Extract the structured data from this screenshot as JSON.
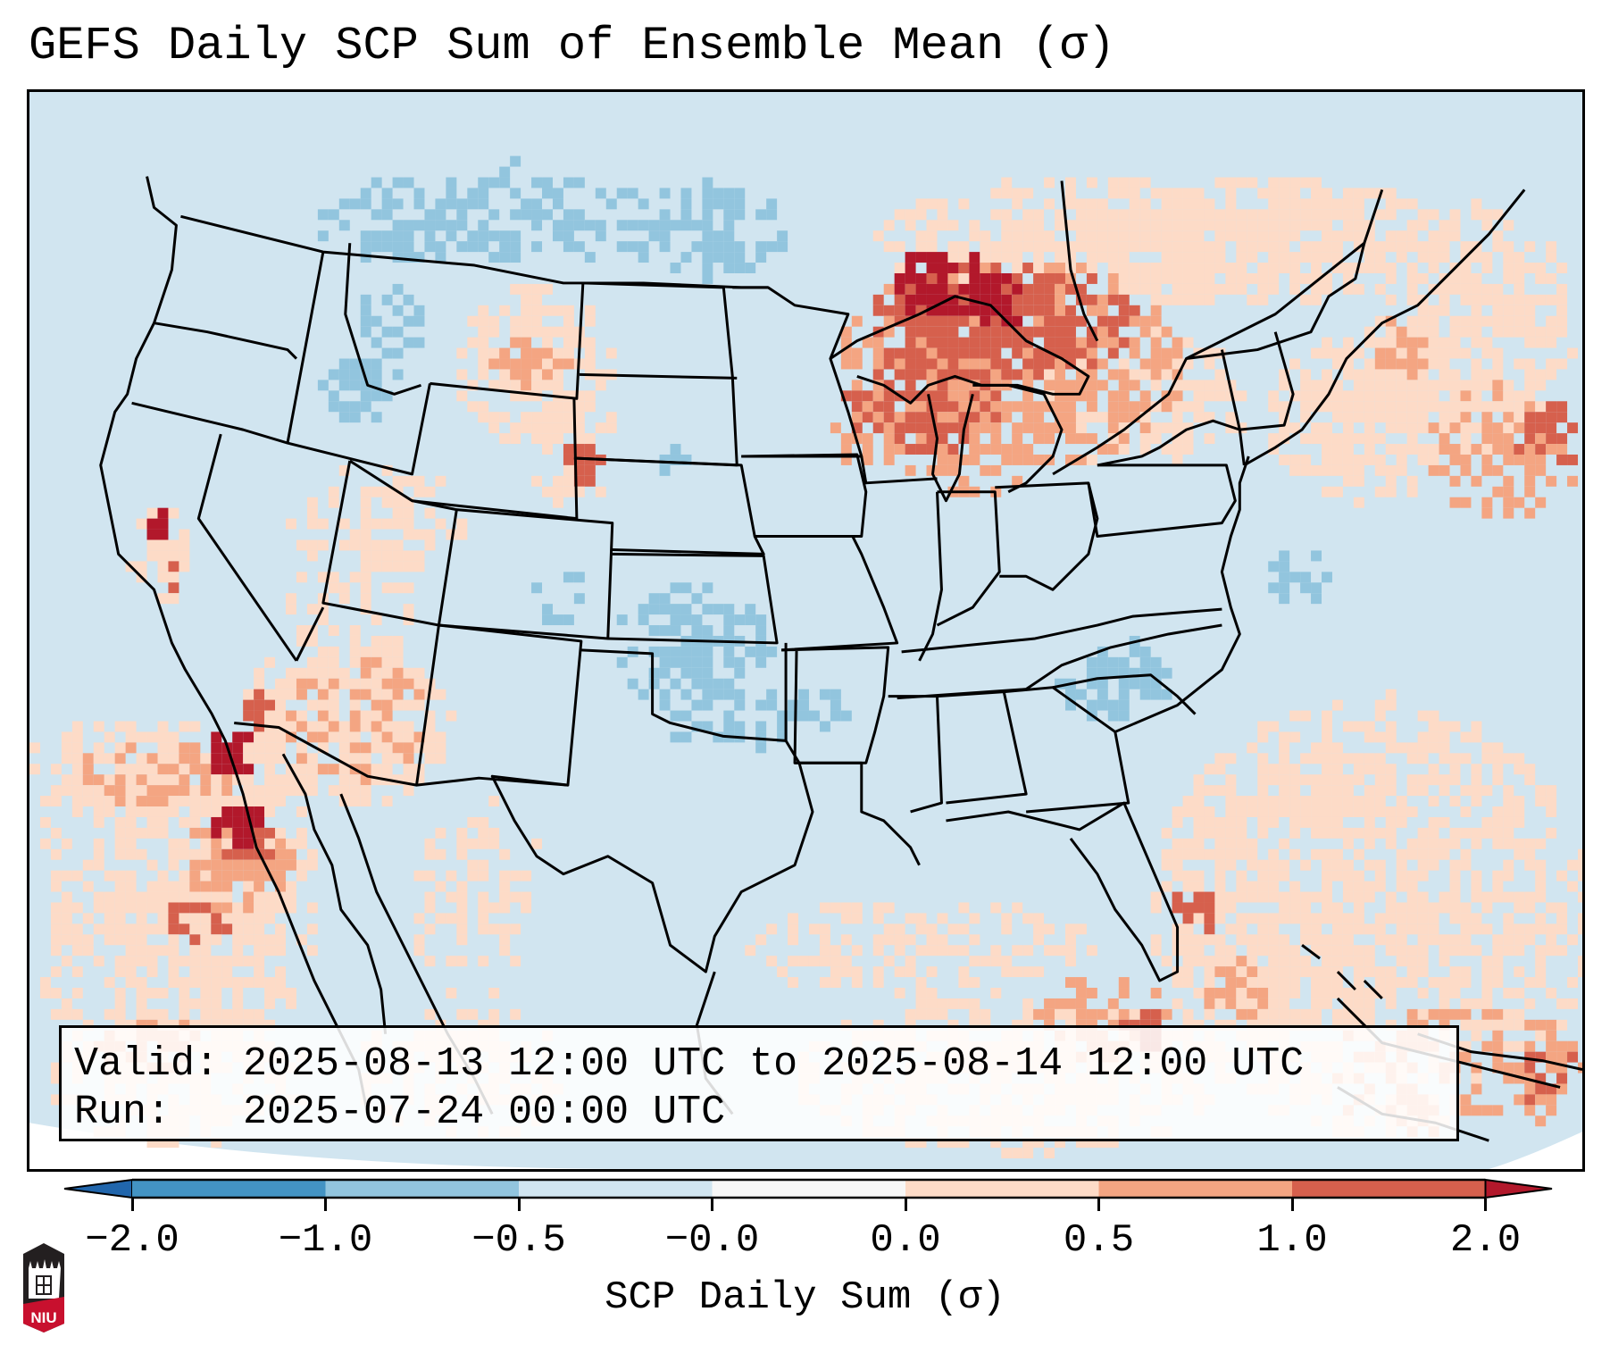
{
  "title": "GEFS Daily SCP Sum of Ensemble Mean (σ)",
  "info_box": {
    "valid_line": "Valid: 2025-08-13 12:00 UTC to 2025-08-14 12:00 UTC",
    "run_line": "Run:   2025-07-24 00:00 UTC"
  },
  "colorbar": {
    "label": "SCP Daily Sum (σ)",
    "ticks": [
      "−2.0",
      "−1.0",
      "−0.5",
      "−0.0",
      "0.0",
      "0.5",
      "1.0",
      "2.0"
    ],
    "bins": [
      {
        "range": "< −2.0",
        "color": "#2166ac"
      },
      {
        "range": "−2.0 to −1.0",
        "color": "#4393c3"
      },
      {
        "range": "−1.0 to −0.5",
        "color": "#92c5de"
      },
      {
        "range": "−0.5 to −0.0",
        "color": "#d1e5f0"
      },
      {
        "range": "−0.0 to 0.0",
        "color": "#f7f7f7"
      },
      {
        "range": "0.0 to 0.5",
        "color": "#fddbc7"
      },
      {
        "range": "0.5 to 1.0",
        "color": "#f4a582"
      },
      {
        "range": "1.0 to 2.0",
        "color": "#d6604d"
      },
      {
        "range": "> 2.0",
        "color": "#b2182b"
      }
    ],
    "extend": "both"
  },
  "logo": {
    "text": "NIU",
    "name": "Northern Illinois University"
  },
  "map": {
    "projection": "Lambert Conformal (CONUS)",
    "background_value_color": "#d1e5f0",
    "highlights": [
      {
        "region": "Upper Great Lakes / Lake Superior",
        "level": "> 2.0"
      },
      {
        "region": "Southern Ontario / Quebec",
        "level": "1.0 to 2.0"
      },
      {
        "region": "Wisconsin / Michigan",
        "level": "1.0 to 2.0"
      },
      {
        "region": "Southern California coast / Baja",
        "level": "> 2.0"
      },
      {
        "region": "Northern California coast",
        "level": "> 2.0"
      },
      {
        "region": "SE Wyoming",
        "level": "1.0 to 2.0"
      },
      {
        "region": "Central Montana",
        "level": "0.5 to 1.0"
      },
      {
        "region": "South Florida / Gulf",
        "level": "1.0 to 2.0"
      },
      {
        "region": "Northeast / Maritimes",
        "level": "1.0 to 2.0"
      },
      {
        "region": "Kansas / Oklahoma",
        "level": "−1.0 to −0.5"
      },
      {
        "region": "Northern Rockies / Idaho",
        "level": "−1.0 to −0.5"
      },
      {
        "region": "Carolinas",
        "level": "−1.0 to −0.5"
      },
      {
        "region": "North Dakota / Montana border",
        "level": "−1.0 to −0.5"
      }
    ]
  },
  "chart_data": {
    "type": "heatmap",
    "title": "GEFS Daily SCP Sum of Ensemble Mean (σ)",
    "colorbar_label": "SCP Daily Sum (σ)",
    "levels": [
      -2.0,
      -1.0,
      -0.5,
      -0.0,
      0.0,
      0.5,
      1.0,
      2.0
    ],
    "valid": "2025-08-13 12:00 UTC to 2025-08-14 12:00 UTC",
    "run": "2025-07-24 00:00 UTC"
  }
}
